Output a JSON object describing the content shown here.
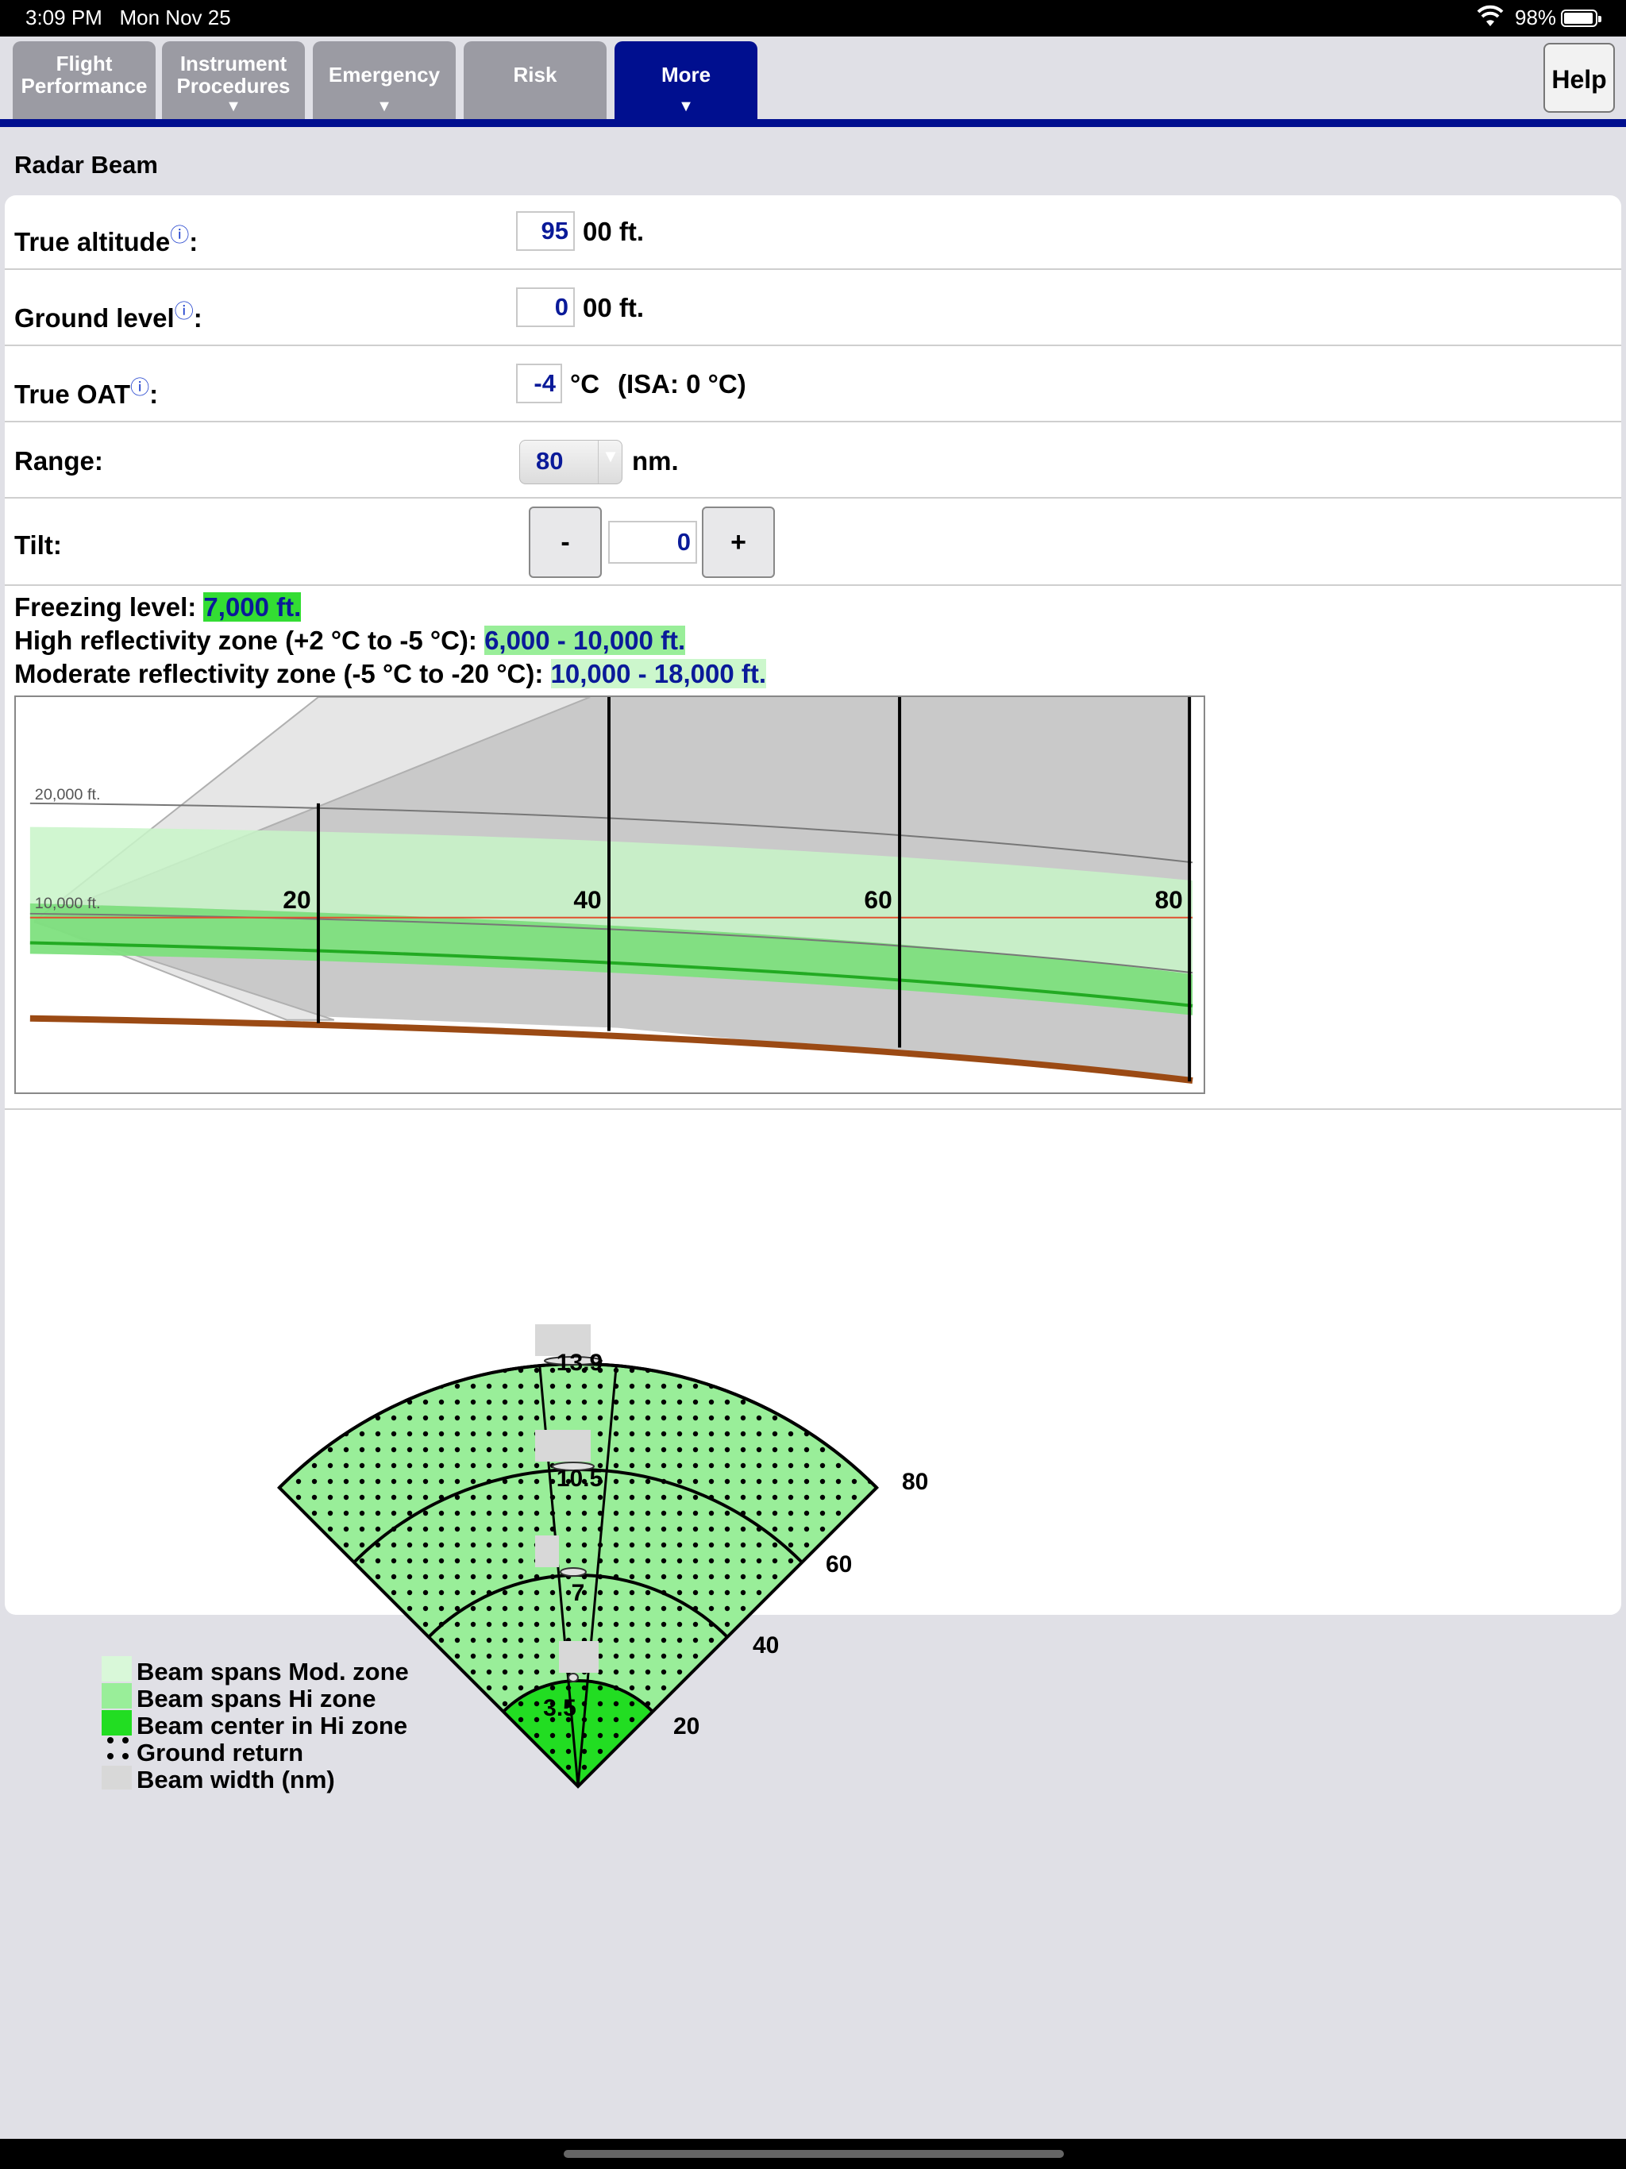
{
  "status_bar": {
    "time": "3:09 PM",
    "date": "Mon Nov 25",
    "battery": "98%"
  },
  "tabs": [
    {
      "line1": "Flight",
      "line2": "Performance",
      "arrow": ""
    },
    {
      "line1": "Instrument",
      "line2": "Procedures",
      "arrow": "▼"
    },
    {
      "line1": "Emergency",
      "line2": "",
      "arrow": "▼"
    },
    {
      "line1": "Risk",
      "line2": "",
      "arrow": ""
    },
    {
      "line1": "More",
      "line2": "",
      "arrow": "▼"
    }
  ],
  "help_label": "Help",
  "page_title": "Radar Beam",
  "info_icon": "ⓘ",
  "form": {
    "true_altitude": {
      "label": "True altitude",
      "suffix": ":",
      "value": "95",
      "unit": "00 ft."
    },
    "ground_level": {
      "label": "Ground level",
      "suffix": ":",
      "value": "0",
      "unit": "00 ft."
    },
    "true_oat": {
      "label": "True OAT",
      "suffix": ":",
      "value": "-4",
      "unit": "°C",
      "isa": "(ISA: 0 °C)"
    },
    "range": {
      "label": "Range:",
      "value": "80",
      "unit": "nm."
    },
    "tilt": {
      "label": "Tilt:",
      "value": "0",
      "minus": "-",
      "plus": "+"
    }
  },
  "info": {
    "freezing_label": "Freezing level:",
    "freezing_value": "7,000 ft.",
    "high_label": "High reflectivity zone (+2 °C to -5 °C):",
    "high_value": "6,000 - 10,000 ft.",
    "moderate_label": "Moderate reflectivity zone (-5 °C to -20 °C):",
    "moderate_value": "10,000 - 18,000 ft."
  },
  "chart_data": [
    {
      "type": "profile",
      "altitude_labels": [
        "20,000 ft.",
        "10,000 ft."
      ],
      "x_ticks": [
        "20",
        "40",
        "60",
        "80"
      ],
      "colors": {
        "mod_zone": "#c8f5c8",
        "hi_zone": "#7ee07e",
        "beam_center": "#22cc22",
        "beam": "#c9c9c9",
        "ground": "#9b4a14",
        "freezing": "#e05030"
      }
    },
    {
      "type": "sector",
      "range_rings": [
        "20",
        "40",
        "60",
        "80"
      ],
      "beam_widths": [
        "3.5",
        "7",
        "10.5",
        "13.9"
      ],
      "legend": [
        "Beam spans Mod. zone",
        "Beam spans Hi zone",
        "Beam center in Hi zone",
        "Ground return",
        "Beam width (nm)"
      ],
      "colors": {
        "mod_zone": "#d9f8d9",
        "hi_zone": "#99ee99",
        "beam_center": "#22dd22",
        "beam_width": "#d8d8d8"
      }
    }
  ]
}
